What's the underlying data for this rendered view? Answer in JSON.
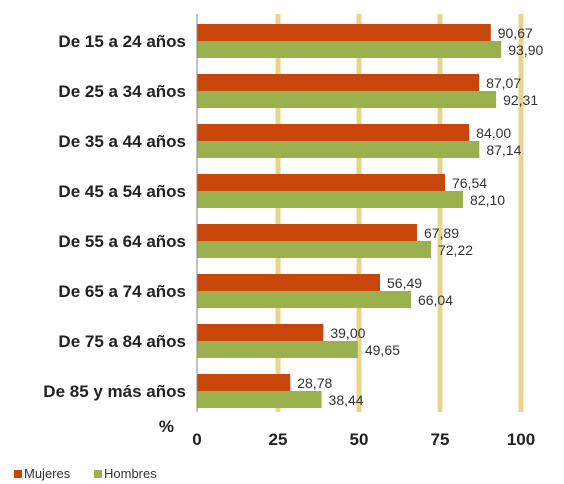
{
  "chart_data": {
    "type": "bar",
    "orientation": "horizontal",
    "categories": [
      "De 15 a 24 años",
      "De 25 a 34 años",
      "De 35 a 44 años",
      "De 45 a 54 años",
      "De 55 a 64 años",
      "De 65 a 74 años",
      "De 75 a 84 años",
      "De 85 y más años"
    ],
    "series": [
      {
        "name": "Mujeres",
        "color": "#C8460A",
        "values": [
          90.67,
          87.07,
          84.0,
          76.54,
          67.89,
          56.49,
          39.0,
          28.78
        ],
        "labels": [
          "90,67",
          "87,07",
          "84,00",
          "76,54",
          "67,89",
          "56,49",
          "39,00",
          "28,78"
        ]
      },
      {
        "name": "Hombres",
        "color": "#9BB14E",
        "values": [
          93.9,
          92.31,
          87.14,
          82.1,
          72.22,
          66.04,
          49.65,
          38.44
        ],
        "labels": [
          "93,90",
          "92,31",
          "87,14",
          "82,10",
          "72,22",
          "66,04",
          "49,65",
          "38,44"
        ]
      }
    ],
    "xlim": [
      0,
      100
    ],
    "ticks": [
      0,
      25,
      50,
      75,
      100
    ],
    "tick_labels": [
      "0",
      "25",
      "50",
      "75",
      "100"
    ],
    "unit_label": "%",
    "gridline_color": "#E8D48A",
    "grid": true,
    "legend_position": "bottom-left"
  }
}
